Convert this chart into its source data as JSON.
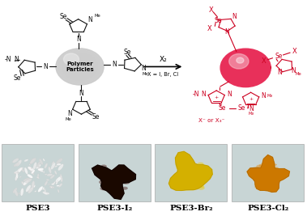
{
  "background_color": "#ffffff",
  "photo_labels": [
    "PSE3",
    "PSE3-I₂",
    "PSE3-Br₂",
    "PSE3-Cl₂"
  ],
  "photo_bg": "#c8d5d5",
  "powder_colors": [
    {
      "main": "#e8e8e8",
      "light": "#f5f5f5",
      "dark": "#cccccc"
    },
    {
      "main": "#1a0800",
      "light": "#3a0500",
      "dark": "#080200"
    },
    {
      "main": "#d4b000",
      "light": "#e8cc10",
      "dark": "#b09000"
    },
    {
      "main": "#cc7800",
      "light": "#e09020",
      "dark": "#a06000"
    }
  ],
  "lc": "#111111",
  "rc": "#cc0020",
  "sphere_left": "#cccccc",
  "sphere_left_shine": "#eeeeee",
  "sphere_right": "#e8305a",
  "sphere_right_shine": "#f8a0b8"
}
